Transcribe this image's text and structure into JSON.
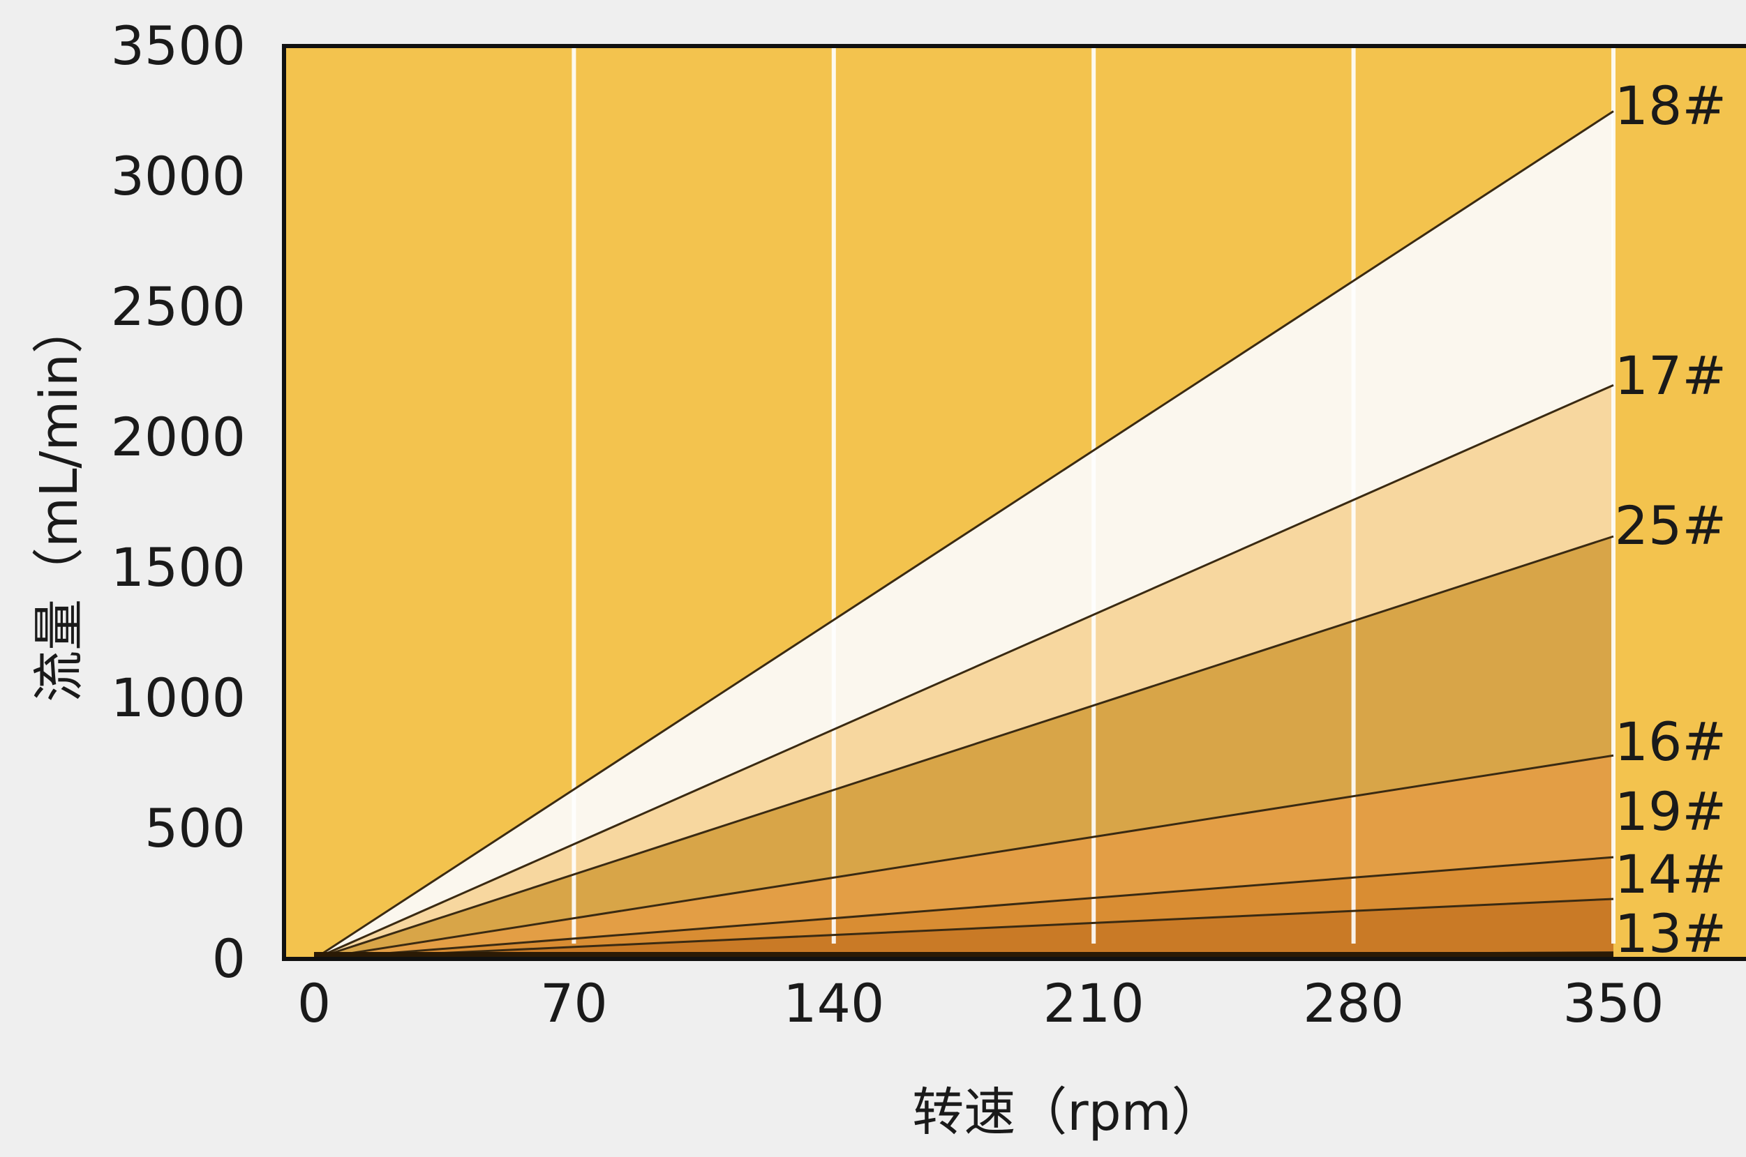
{
  "chart_data": {
    "type": "area",
    "xlabel": "转速（rpm）",
    "ylabel": "流量（mL/min）",
    "x_ticks": [
      "0",
      "70",
      "140",
      "210",
      "280",
      "350"
    ],
    "y_ticks": [
      "0",
      "500",
      "1000",
      "1500",
      "2000",
      "2500",
      "3000",
      "3500"
    ],
    "xlim": [
      0,
      350
    ],
    "ylim": [
      0,
      3500
    ],
    "grid": "vertical",
    "background_color": "#f3c34e",
    "series": [
      {
        "name": "18#",
        "x": [
          0,
          350
        ],
        "y": [
          0,
          3250
        ],
        "fill": "#fbf7ee"
      },
      {
        "name": "17#",
        "x": [
          0,
          350
        ],
        "y": [
          0,
          2200
        ],
        "fill": "#f7d79f"
      },
      {
        "name": "25#",
        "x": [
          0,
          350
        ],
        "y": [
          0,
          1620
        ],
        "fill": "#d8a548"
      },
      {
        "name": "16#",
        "x": [
          0,
          350
        ],
        "y": [
          0,
          780
        ],
        "fill": "#e39e45"
      },
      {
        "name": "19#",
        "x": [
          0,
          350
        ],
        "y": [
          0,
          390
        ],
        "fill": "#d98d33"
      },
      {
        "name": "14#",
        "x": [
          0,
          350
        ],
        "y": [
          0,
          230
        ],
        "fill": "#c97a26"
      },
      {
        "name": "13#",
        "x": [
          0,
          350
        ],
        "y": [
          0,
          25
        ],
        "fill": "#8a4a12"
      }
    ]
  }
}
